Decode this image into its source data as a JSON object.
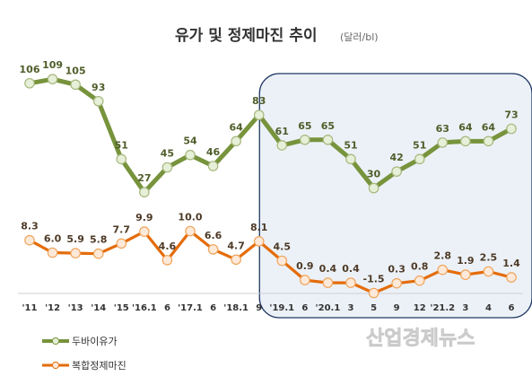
{
  "chart_data": {
    "type": "line",
    "title": "유가 및 정제마진 추이",
    "unit": "(달러/bl)",
    "categories": [
      "'11",
      "'12",
      "'13",
      "'14",
      "'15",
      "'16.1",
      "6",
      "'17.1",
      "6",
      "'18.1",
      "9",
      "'19.1",
      "6",
      "'20.1",
      "3",
      "5",
      "9",
      "12",
      "'21.2",
      "3",
      "4",
      "6"
    ],
    "series": [
      {
        "name": "두바이유가",
        "values": [
          106,
          109,
          105,
          93,
          51,
          27,
          45,
          54,
          46,
          64,
          83,
          61,
          65,
          65,
          51,
          30,
          42,
          51,
          63,
          64,
          64,
          73
        ],
        "labels": [
          "106",
          "109",
          "105",
          "93",
          "51",
          "27",
          "45",
          "54",
          "46",
          "64",
          "83",
          "61",
          "65",
          "65",
          "51",
          "30",
          "42",
          "51",
          "63",
          "64",
          "64",
          "73"
        ],
        "color": "#77933c",
        "marker_fill": "#e6efd7"
      },
      {
        "name": "복합정제마진",
        "values": [
          8.3,
          6.0,
          5.9,
          5.8,
          7.7,
          9.9,
          4.6,
          10.0,
          6.6,
          4.7,
          8.1,
          4.5,
          0.9,
          0.4,
          0.4,
          -1.5,
          0.3,
          0.8,
          2.8,
          1.9,
          2.5,
          1.4
        ],
        "labels": [
          "8.3",
          "6.0",
          "5.9",
          "5.8",
          "7.7",
          "9.9",
          "4.6",
          "10.0",
          "6.6",
          "4.7",
          "8.1",
          "4.5",
          "0.9",
          "0.4",
          "0.4",
          "-1.5",
          "0.3",
          "0.8",
          "2.8",
          "1.9",
          "2.5",
          "1.4"
        ],
        "color": "#e46c0a",
        "marker_fill": "#fde9d9"
      }
    ],
    "highlight": {
      "from_category": "'19.1",
      "to_category": "6",
      "fill": "#dce6f1",
      "border": "#1f3864"
    },
    "legend_position": "bottom-left",
    "grid": false
  },
  "watermark": "산업경제뉴스"
}
